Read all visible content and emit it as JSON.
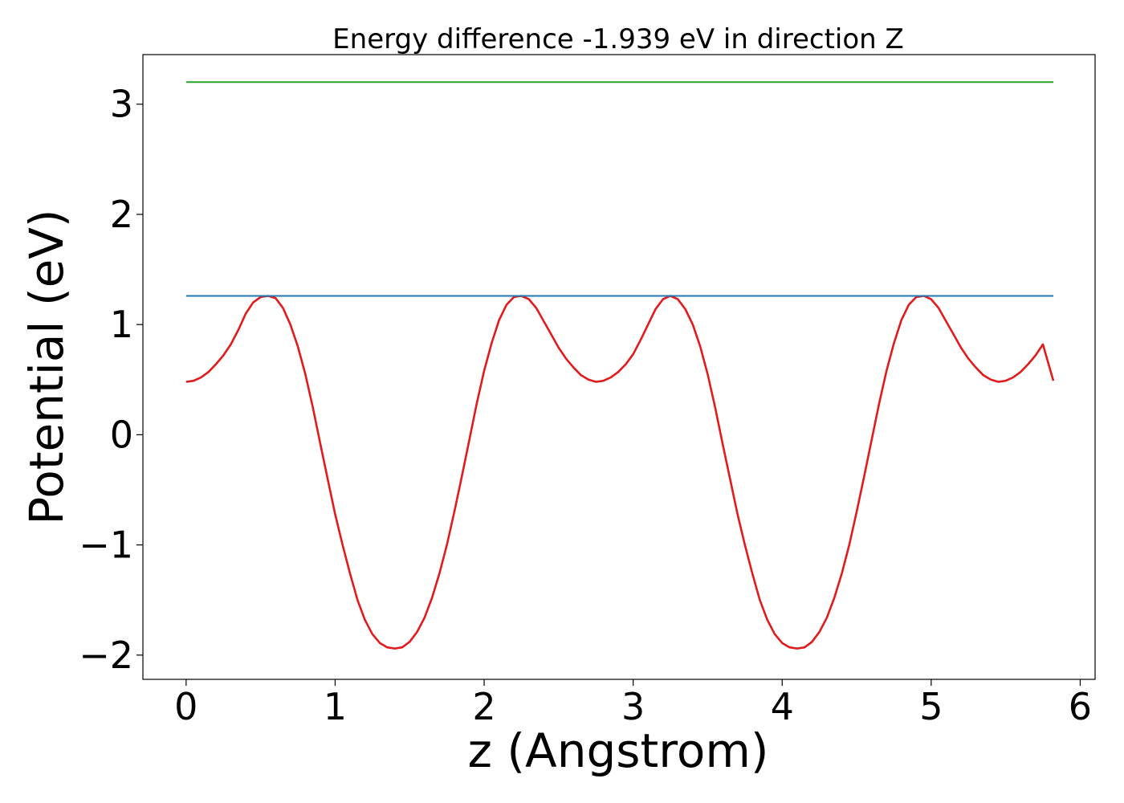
{
  "chart_data": {
    "type": "line",
    "title": "Energy difference -1.939 eV in direction Z",
    "xlabel": "z (Angstrom)",
    "ylabel": "Potential (eV)",
    "xlim": [
      -0.29,
      6.1
    ],
    "ylim": [
      -2.22,
      3.45
    ],
    "xticks": [
      0,
      1,
      2,
      3,
      4,
      5,
      6
    ],
    "xtick_labels": [
      "0",
      "1",
      "2",
      "3",
      "4",
      "5",
      "6"
    ],
    "yticks": [
      -2,
      -1,
      0,
      1,
      2,
      3
    ],
    "ytick_labels": [
      "−2",
      "−1",
      "0",
      "1",
      "2",
      "3"
    ],
    "grid": false,
    "series": [
      {
        "color": "#e31a1c",
        "x": [
          0.0,
          0.05,
          0.1,
          0.15,
          0.2,
          0.25,
          0.3,
          0.35,
          0.4,
          0.45,
          0.5,
          0.55,
          0.6,
          0.65,
          0.7,
          0.75,
          0.8,
          0.85,
          0.9,
          0.95,
          1.0,
          1.05,
          1.1,
          1.15,
          1.2,
          1.25,
          1.3,
          1.35,
          1.4,
          1.45,
          1.5,
          1.55,
          1.6,
          1.65,
          1.7,
          1.75,
          1.8,
          1.85,
          1.9,
          1.95,
          2.0,
          2.05,
          2.1,
          2.15,
          2.2,
          2.25,
          2.3,
          2.35,
          2.4,
          2.45,
          2.5,
          2.55,
          2.6,
          2.65,
          2.7,
          2.75,
          2.8,
          2.85,
          2.9,
          2.95,
          3.0,
          3.05,
          3.1,
          3.15,
          3.2,
          3.25,
          3.3,
          3.35,
          3.4,
          3.45,
          3.5,
          3.55,
          3.6,
          3.65,
          3.7,
          3.75,
          3.8,
          3.85,
          3.9,
          3.95,
          4.0,
          4.05,
          4.1,
          4.15,
          4.2,
          4.25,
          4.3,
          4.35,
          4.4,
          4.45,
          4.5,
          4.55,
          4.6,
          4.65,
          4.7,
          4.75,
          4.8,
          4.85,
          4.9,
          4.95,
          5.0,
          5.05,
          5.1,
          5.15,
          5.2,
          5.25,
          5.3,
          5.35,
          5.4,
          5.45,
          5.5,
          5.55,
          5.6,
          5.65,
          5.7,
          5.75,
          5.82
        ],
        "y": [
          0.48,
          0.49,
          0.52,
          0.57,
          0.64,
          0.72,
          0.82,
          0.95,
          1.1,
          1.2,
          1.25,
          1.26,
          1.24,
          1.15,
          1.0,
          0.8,
          0.55,
          0.25,
          -0.08,
          -0.4,
          -0.72,
          -1.0,
          -1.26,
          -1.5,
          -1.68,
          -1.81,
          -1.89,
          -1.93,
          -1.94,
          -1.93,
          -1.88,
          -1.79,
          -1.66,
          -1.48,
          -1.26,
          -1.0,
          -0.7,
          -0.38,
          -0.05,
          0.28,
          0.58,
          0.83,
          1.04,
          1.18,
          1.25,
          1.26,
          1.23,
          1.15,
          1.03,
          0.91,
          0.79,
          0.69,
          0.61,
          0.54,
          0.5,
          0.48,
          0.49,
          0.52,
          0.57,
          0.64,
          0.73,
          0.86,
          1.0,
          1.14,
          1.23,
          1.26,
          1.23,
          1.14,
          1.0,
          0.8,
          0.55,
          0.25,
          -0.08,
          -0.4,
          -0.72,
          -1.0,
          -1.26,
          -1.5,
          -1.68,
          -1.81,
          -1.89,
          -1.93,
          -1.94,
          -1.93,
          -1.88,
          -1.79,
          -1.66,
          -1.48,
          -1.26,
          -1.0,
          -0.7,
          -0.38,
          -0.05,
          0.28,
          0.58,
          0.83,
          1.04,
          1.18,
          1.25,
          1.26,
          1.23,
          1.15,
          1.03,
          0.91,
          0.79,
          0.69,
          0.61,
          0.54,
          0.5,
          0.48,
          0.49,
          0.52,
          0.57,
          0.64,
          0.72,
          0.82,
          0.49
        ]
      },
      {
        "color": "#1f77b4",
        "x": [
          0.0,
          5.82
        ],
        "y": [
          1.26,
          1.26
        ]
      },
      {
        "color": "#2ca02c",
        "x": [
          0.0,
          5.82
        ],
        "y": [
          3.2,
          3.2
        ]
      }
    ]
  }
}
